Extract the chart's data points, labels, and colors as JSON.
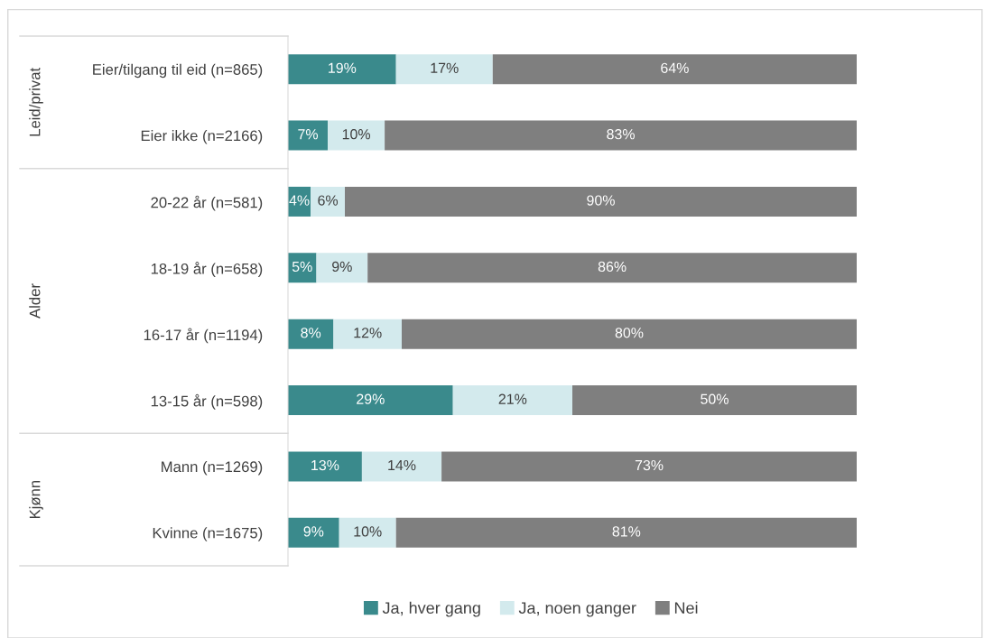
{
  "chart_data": {
    "type": "bar",
    "orientation": "horizontal",
    "stacked": true,
    "categories": [
      "Eier/tilgang til eid (n=865)",
      "Eier ikke (n=2166)",
      "20-22 år (n=581)",
      "18-19 år (n=658)",
      "16-17 år (n=1194)",
      "13-15 år (n=598)",
      "Mann (n=1269)",
      "Kvinne (n=1675)"
    ],
    "series": [
      {
        "name": "Ja, hver gang",
        "color": "#3a8a8c",
        "values": [
          19,
          7,
          4,
          5,
          8,
          29,
          13,
          9
        ],
        "value_labels": [
          "19%",
          "7%",
          "4%",
          "5%",
          "8%",
          "29%",
          "13%",
          "9%"
        ]
      },
      {
        "name": "Ja, noen ganger",
        "color": "#d3eaed",
        "values": [
          17,
          10,
          6,
          9,
          12,
          21,
          14,
          10
        ],
        "value_labels": [
          "17%",
          "10%",
          "6%",
          "9%",
          "12%",
          "21%",
          "14%",
          "10%"
        ]
      },
      {
        "name": "Nei",
        "color": "#7f7f7f",
        "values": [
          64,
          83,
          90,
          86,
          80,
          50,
          73,
          81
        ],
        "value_labels": [
          "64%",
          "83%",
          "90%",
          "86%",
          "80%",
          "50%",
          "73%",
          "81%"
        ]
      }
    ],
    "xlim": [
      0,
      100
    ],
    "tick_labels": "y",
    "grid": false,
    "legend": "bottom",
    "annotations": [
      "Leid/privat",
      "Alder",
      "Kjønn"
    ]
  }
}
